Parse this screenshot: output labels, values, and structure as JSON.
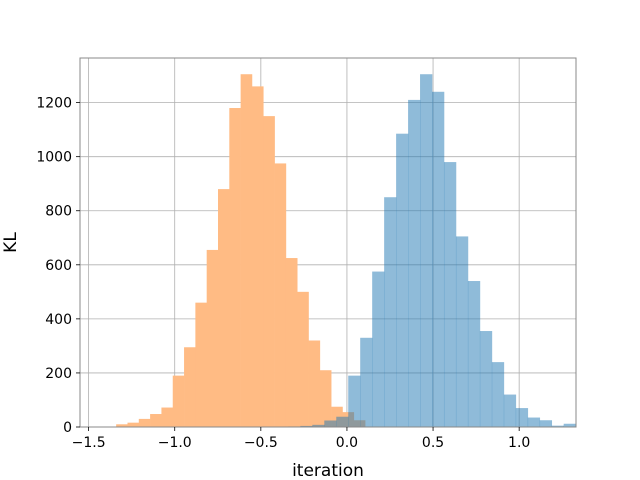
{
  "chart_data": {
    "type": "histogram",
    "xlabel": "iteration",
    "ylabel": "KL",
    "xlim": [
      -1.55,
      1.33
    ],
    "ylim": [
      0,
      1365
    ],
    "grid": true,
    "x_ticks": [
      "−1.5",
      "−1.0",
      "−0.5",
      "0.0",
      "0.5",
      "1.0"
    ],
    "x_tick_values": [
      -1.5,
      -1.0,
      -0.5,
      0.0,
      0.5,
      1.0
    ],
    "y_ticks": [
      "0",
      "200",
      "400",
      "600",
      "800",
      "1000",
      "1200"
    ],
    "y_tick_values": [
      0,
      200,
      400,
      600,
      800,
      1000,
      1200
    ],
    "series": [
      {
        "color": "#ffbb84",
        "alpha": 1.0,
        "bin_start": -1.34,
        "bin_width": 0.0657,
        "counts": [
          10,
          16,
          30,
          48,
          72,
          190,
          295,
          460,
          655,
          880,
          1180,
          1305,
          1260,
          1150,
          975,
          625,
          500,
          320,
          210,
          75,
          55,
          25
        ]
      },
      {
        "color": "#1f77b4",
        "alpha": 0.5,
        "bin_start": -0.34,
        "bin_width": 0.0695,
        "counts": [
          2,
          4,
          8,
          24,
          38,
          190,
          330,
          575,
          850,
          1085,
          1210,
          1305,
          1240,
          980,
          705,
          540,
          355,
          240,
          120,
          70,
          35,
          25,
          5,
          12
        ]
      }
    ]
  }
}
